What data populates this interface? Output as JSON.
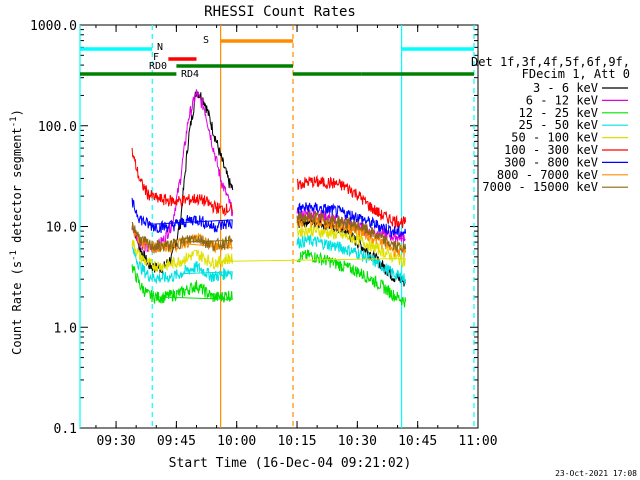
{
  "chart_data": {
    "type": "line",
    "title": "RHESSI Count Rates",
    "xlabel": "Start Time (16-Dec-04 09:21:02)",
    "ylabel": "Count Rate (s⁻¹ detector segment⁻¹)",
    "ylabel_main": "Count Rate (s",
    "ylabel_sup1": "-1",
    "ylabel_mid": " detector segment",
    "ylabel_sup2": "-1",
    "ylabel_end": ")",
    "yscale": "log",
    "ylim": [
      0.1,
      1000
    ],
    "xlim": [
      "09:21:02",
      "11:00:00"
    ],
    "x_ticks": [
      "09:30",
      "09:45",
      "10:00",
      "10:15",
      "10:30",
      "10:45",
      "11:00"
    ],
    "y_ticks": [
      "0.1",
      "1.0",
      "10.0",
      "100.0",
      "1000.0"
    ],
    "timestamp": "23-Oct-2021 17:08",
    "legend": {
      "header1": "Det 1f,3f,4f,5f,6f,9f,",
      "header2": "FDecim 1, Att 0",
      "placement": "right"
    },
    "series": [
      {
        "name": "3 - 6 keV",
        "color": "#000000",
        "x": [
          "09:34",
          "09:36",
          "09:38",
          "09:40",
          "09:42",
          "09:44",
          "09:46",
          "09:48",
          "09:50",
          "09:52",
          "09:54",
          "09:56",
          "09:58",
          "09:59",
          "10:15",
          "10:18",
          "10:21",
          "10:24",
          "10:27",
          "10:30",
          "10:33",
          "10:36",
          "10:39",
          "10:42"
        ],
        "values": [
          11,
          6,
          4.2,
          3.9,
          4,
          5,
          11,
          75,
          230,
          175,
          95,
          50,
          28,
          23,
          11,
          11.5,
          11,
          10,
          9,
          7,
          5.5,
          4.2,
          3.2,
          2.8
        ]
      },
      {
        "name": "6 - 12 keV",
        "color": "#e000e0",
        "x": [
          "09:34",
          "09:36",
          "09:38",
          "09:40",
          "09:42",
          "09:44",
          "09:46",
          "09:48",
          "09:50",
          "09:52",
          "09:54",
          "09:56",
          "09:58",
          "09:59",
          "10:15",
          "10:18",
          "10:21",
          "10:24",
          "10:27",
          "10:30",
          "10:33",
          "10:36",
          "10:39",
          "10:42"
        ],
        "values": [
          10,
          7,
          6,
          6.3,
          7.5,
          11,
          30,
          120,
          210,
          150,
          65,
          30,
          18,
          14,
          13,
          13.5,
          13,
          12,
          11,
          10,
          9,
          8.5,
          8,
          8
        ]
      },
      {
        "name": "12 - 25 keV",
        "color": "#00e000",
        "x": [
          "09:34",
          "09:36",
          "09:38",
          "09:40",
          "09:42",
          "09:44",
          "09:46",
          "09:48",
          "09:50",
          "09:52",
          "09:54",
          "09:56",
          "09:58",
          "09:59",
          "10:15",
          "10:18",
          "10:21",
          "10:24",
          "10:27",
          "10:30",
          "10:33",
          "10:36",
          "10:39",
          "10:42"
        ],
        "values": [
          4,
          2.6,
          2.1,
          2,
          2,
          2.1,
          2.2,
          2.4,
          2.6,
          2.3,
          2.0,
          2.0,
          2.1,
          2.0,
          5,
          5.2,
          4.8,
          4.4,
          4,
          3.6,
          3.1,
          2.6,
          2.1,
          1.8
        ]
      },
      {
        "name": "25 - 50 keV",
        "color": "#00e0e0",
        "x": [
          "09:34",
          "09:36",
          "09:38",
          "09:40",
          "09:42",
          "09:44",
          "09:46",
          "09:48",
          "09:50",
          "09:52",
          "09:54",
          "09:56",
          "09:58",
          "09:59",
          "10:15",
          "10:18",
          "10:21",
          "10:24",
          "10:27",
          "10:30",
          "10:33",
          "10:36",
          "10:39",
          "10:42"
        ],
        "values": [
          6,
          4,
          3.3,
          3.1,
          3.1,
          3.2,
          3.4,
          3.7,
          4,
          3.6,
          3.2,
          3.3,
          3.6,
          3.4,
          7,
          7.3,
          6.9,
          6.5,
          6,
          5.5,
          4.8,
          4.1,
          3.4,
          3
        ]
      },
      {
        "name": "50 - 100 keV",
        "color": "#e0e000",
        "x": [
          "09:34",
          "09:36",
          "09:38",
          "09:40",
          "09:42",
          "09:44",
          "09:46",
          "09:48",
          "09:50",
          "09:52",
          "09:54",
          "09:56",
          "09:58",
          "09:59",
          "10:15",
          "10:18",
          "10:21",
          "10:24",
          "10:27",
          "10:30",
          "10:33",
          "10:36",
          "10:39",
          "10:42"
        ],
        "values": [
          7,
          5,
          4.3,
          4.1,
          4.1,
          4.3,
          4.6,
          5,
          5.4,
          4.9,
          4.4,
          4.5,
          4.9,
          4.7,
          9,
          9.3,
          8.9,
          8.5,
          8,
          7.5,
          6.6,
          5.8,
          5,
          4.5
        ]
      },
      {
        "name": "100 - 300 keV",
        "color": "#ff0000",
        "x": [
          "09:34",
          "09:36",
          "09:38",
          "09:40",
          "09:42",
          "09:44",
          "09:46",
          "09:48",
          "09:50",
          "09:52",
          "09:54",
          "09:56",
          "09:58",
          "09:59",
          "10:15",
          "10:18",
          "10:21",
          "10:24",
          "10:27",
          "10:30",
          "10:33",
          "10:36",
          "10:39",
          "10:42"
        ],
        "values": [
          55,
          28,
          21,
          19,
          18.5,
          18,
          18,
          18.5,
          19,
          18,
          16,
          15,
          15,
          14.5,
          26,
          28,
          27.5,
          27,
          25,
          21,
          16,
          13,
          11.5,
          11
        ]
      },
      {
        "name": "300 - 800 keV",
        "color": "#0000ff",
        "x": [
          "09:34",
          "09:36",
          "09:38",
          "09:40",
          "09:42",
          "09:44",
          "09:46",
          "09:48",
          "09:50",
          "09:52",
          "09:54",
          "09:56",
          "09:58",
          "09:59",
          "10:15",
          "10:18",
          "10:21",
          "10:24",
          "10:27",
          "10:30",
          "10:33",
          "10:36",
          "10:39",
          "10:42"
        ],
        "values": [
          17,
          12,
          10.5,
          10,
          10,
          10.3,
          10.8,
          11.5,
          12,
          11,
          10,
          10.2,
          10.8,
          10.5,
          15,
          15.5,
          15,
          14.5,
          13.5,
          12.5,
          11,
          10,
          9,
          8.5
        ]
      },
      {
        "name": "800 - 7000 keV",
        "color": "#ff8c00",
        "x": [
          "09:34",
          "09:36",
          "09:38",
          "09:40",
          "09:42",
          "09:44",
          "09:46",
          "09:48",
          "09:50",
          "09:52",
          "09:54",
          "09:56",
          "09:58",
          "09:59",
          "10:15",
          "10:18",
          "10:21",
          "10:24",
          "10:27",
          "10:30",
          "10:33",
          "10:36",
          "10:39",
          "10:42"
        ],
        "values": [
          10,
          7.2,
          6.4,
          6.2,
          6.2,
          6.4,
          6.8,
          7.2,
          7.6,
          7,
          6.4,
          6.5,
          7,
          6.8,
          11,
          11.4,
          11,
          10.5,
          10,
          9.3,
          8.2,
          7,
          6,
          5.5
        ]
      },
      {
        "name": "7000 - 15000 keV",
        "color": "#8b6914",
        "x": [
          "09:34",
          "09:36",
          "09:38",
          "09:40",
          "09:42",
          "09:44",
          "09:46",
          "09:48",
          "09:50",
          "09:52",
          "09:54",
          "09:56",
          "09:58",
          "09:59",
          "10:15",
          "10:18",
          "10:21",
          "10:24",
          "10:27",
          "10:30",
          "10:33",
          "10:36",
          "10:39",
          "10:42"
        ],
        "values": [
          10.5,
          7.5,
          6.6,
          6.4,
          6.4,
          6.6,
          7,
          7.4,
          7.8,
          7.2,
          6.6,
          6.7,
          7.2,
          7,
          12,
          12.4,
          12,
          11.5,
          11,
          10.2,
          9,
          7.6,
          6.5,
          6
        ]
      }
    ],
    "flag_bars": [
      {
        "label": "",
        "color": "#00ffff",
        "segments": [
          [
            "09:21:02",
            "09:39:00"
          ],
          [
            "10:41:00",
            "10:59:00"
          ]
        ]
      },
      {
        "label": "N",
        "color": "#00ffff",
        "segments": []
      },
      {
        "label": "S",
        "color": "#ff8c00",
        "segments": [
          [
            "09:56:00",
            "10:14:00"
          ]
        ]
      },
      {
        "label": "F",
        "color": "#ff0000",
        "segments": [
          [
            "09:43:00",
            "09:50:00"
          ]
        ]
      },
      {
        "label": "RD0",
        "color": "#008000",
        "segments": [
          [
            "09:45:00",
            "10:14:00"
          ]
        ]
      },
      {
        "label": "RD4",
        "color": "#008000",
        "segments": [
          [
            "09:21:02",
            "09:45:00"
          ],
          [
            "10:14:00",
            "10:31:00"
          ],
          [
            "10:31:00",
            "10:59:00"
          ]
        ]
      }
    ],
    "vertical_markers": [
      {
        "x": "09:21:02",
        "color": "#00ffff",
        "style": "solid"
      },
      {
        "x": "09:39:00",
        "color": "#00ffff",
        "style": "dashed"
      },
      {
        "x": "09:56:00",
        "color": "#ff8c00",
        "style": "solid"
      },
      {
        "x": "10:14:00",
        "color": "#ff8c00",
        "style": "dashed"
      },
      {
        "x": "10:41:00",
        "color": "#00ffff",
        "style": "solid"
      },
      {
        "x": "10:59:00",
        "color": "#00ffff",
        "style": "dashed"
      }
    ]
  }
}
